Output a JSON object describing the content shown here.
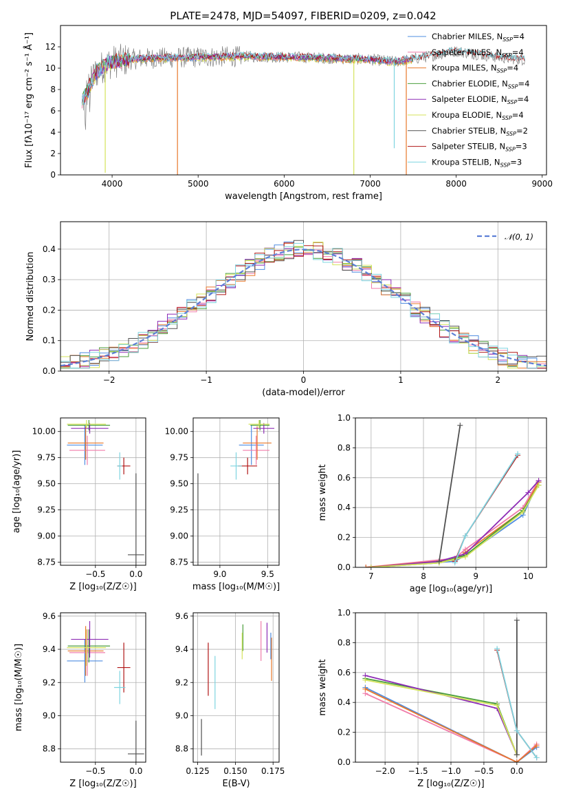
{
  "colors": {
    "chabrier_miles": "#4e8ce0",
    "salpeter_miles": "#f07ba9",
    "kroupa_miles": "#e8782a",
    "chabrier_elodie": "#4a9e3a",
    "salpeter_elodie": "#8d2bb5",
    "kroupa_elodie": "#d4e35a",
    "chabrier_stelib": "#505050",
    "salpeter_stelib": "#b01414",
    "kroupa_stelib": "#7dd4e0",
    "norm": "#5d7fd6",
    "spectrum_grey": "#7f7f7f"
  },
  "chart_data": [
    {
      "id": "spectrum",
      "type": "line",
      "title": "PLATE=2478, MJD=54097, FIBERID=0209, z=0.042",
      "xlabel": "wavelength [Angstrom, rest frame]",
      "ylabel": "Flux [fλ10⁻¹⁷ erg cm⁻² s⁻¹ Å⁻¹]",
      "xlim": [
        3400,
        9050
      ],
      "ylim": [
        0,
        14
      ],
      "xticks": [
        "4000",
        "5000",
        "6000",
        "7000",
        "8000",
        "9000"
      ],
      "yticks": [
        "0",
        "2",
        "4",
        "6",
        "8",
        "10",
        "12"
      ],
      "legend_position": "top-right",
      "legend": [
        "Chabrier MILES, N_SSP=4",
        "Salpeter MILES, N_SSP=4",
        "Kroupa MILES, N_SSP=4",
        "Chabrier ELODIE, N_SSP=4",
        "Salpeter ELODIE, N_SSP=4",
        "Kroupa ELODIE, N_SSP=4",
        "Chabrier STELIB, N_SSP=2",
        "Salpeter STELIB, N_SSP=3",
        "Kroupa STELIB, N_SSP=3"
      ],
      "legend_display": [
        [
          "Chabrier MILES, N",
          "SSP",
          "=4"
        ],
        [
          "Salpeter MILES, N",
          "SSP",
          "=4"
        ],
        [
          "Kroupa MILES, N",
          "SSP",
          "=4"
        ],
        [
          "Chabrier ELODIE, N",
          "SSP",
          "=4"
        ],
        [
          "Salpeter ELODIE, N",
          "SSP",
          "=4"
        ],
        [
          "Kroupa ELODIE, N",
          "SSP",
          "=4"
        ],
        [
          "Chabrier STELIB, N",
          "SSP",
          "=2"
        ],
        [
          "Salpeter STELIB, N",
          "SSP",
          "=3"
        ],
        [
          "Kroupa STELIB, N",
          "SSP",
          "=3"
        ]
      ],
      "continuum": [
        [
          3650,
          6.8
        ],
        [
          3700,
          7.6
        ],
        [
          3800,
          9.5
        ],
        [
          3900,
          10.2
        ],
        [
          4000,
          10.6
        ],
        [
          4300,
          10.9
        ],
        [
          4800,
          11.0
        ],
        [
          5500,
          11.1
        ],
        [
          6300,
          11.0
        ],
        [
          7000,
          10.8
        ],
        [
          7300,
          10.6
        ],
        [
          7600,
          11.0
        ],
        [
          8000,
          11.6
        ],
        [
          8500,
          11.0
        ],
        [
          8800,
          10.8
        ]
      ],
      "model_end": 7500,
      "dips": [
        {
          "x": 3920,
          "y": 0.2,
          "color": "kroupa_elodie"
        },
        {
          "x": 4760,
          "y": 0.0,
          "color": "kroupa_miles"
        },
        {
          "x": 6810,
          "y": 0.0,
          "color": "kroupa_elodie"
        },
        {
          "x": 7280,
          "y": 2.5,
          "color": "kroupa_stelib"
        },
        {
          "x": 7420,
          "y": 0.0,
          "color": "kroupa_miles"
        }
      ]
    },
    {
      "id": "residuals",
      "type": "line",
      "xlabel": "(data-model)/error",
      "ylabel": "Normed distribution",
      "xlim": [
        -2.5,
        2.5
      ],
      "ylim": [
        0,
        0.49
      ],
      "xticks": [
        "−2",
        "−1",
        "0",
        "1",
        "2"
      ],
      "yticks": [
        "0.0",
        "0.1",
        "0.2",
        "0.3",
        "0.4"
      ],
      "legend_position": "top-right",
      "legend": [
        "𝒩(0, 1)"
      ],
      "normal_mean": 0,
      "normal_sd": 1,
      "bin_width": 0.1
    },
    {
      "id": "age_vs_Z",
      "type": "scatter",
      "xlabel": "Z [log₁₀(Z/Z☉)]",
      "ylabel": "age  [log₁₀(age/yr)]",
      "xlim": [
        -0.93,
        0.12
      ],
      "ylim": [
        8.72,
        10.13
      ],
      "xticks": [
        "−0.5",
        "0.0"
      ],
      "yticks": [
        "8.75",
        "9.00",
        "9.25",
        "9.50",
        "9.75",
        "10.00"
      ],
      "points": [
        {
          "model": "chabrier_miles",
          "x": -0.63,
          "y": 9.87,
          "xerr": 0.22,
          "yerr": 0.19
        },
        {
          "model": "salpeter_miles",
          "x": -0.6,
          "y": 9.82,
          "xerr": 0.22,
          "yerr": 0.14
        },
        {
          "model": "kroupa_miles",
          "x": -0.62,
          "y": 9.89,
          "xerr": 0.22,
          "yerr": 0.16
        },
        {
          "model": "chabrier_elodie",
          "x": -0.58,
          "y": 10.06,
          "xerr": 0.26,
          "yerr": 0.05
        },
        {
          "model": "salpeter_elodie",
          "x": -0.57,
          "y": 10.03,
          "xerr": 0.23,
          "yerr": 0.05
        },
        {
          "model": "kroupa_elodie",
          "x": -0.61,
          "y": 10.07,
          "xerr": 0.24,
          "yerr": 0.04
        },
        {
          "model": "chabrier_stelib",
          "x": 0.0,
          "y": 8.82,
          "xerr": 0.1,
          "yerr": 0.78
        },
        {
          "model": "salpeter_stelib",
          "x": -0.15,
          "y": 9.67,
          "xerr": 0.08,
          "yerr": 0.08
        },
        {
          "model": "kroupa_stelib",
          "x": -0.2,
          "y": 9.67,
          "xerr": 0.03,
          "yerr": 0.13
        }
      ]
    },
    {
      "id": "age_vs_mass",
      "type": "scatter",
      "xlabel": "mass [log₁₀(M/M☉)]",
      "ylabel": "",
      "xlim": [
        8.72,
        9.62
      ],
      "ylim": [
        8.72,
        10.13
      ],
      "xticks": [
        "9.0",
        "9.5"
      ],
      "yticks": [
        "8.75",
        "9.00",
        "9.25",
        "9.50",
        "9.75",
        "10.00"
      ],
      "points": [
        {
          "model": "chabrier_miles",
          "x": 9.33,
          "y": 9.87,
          "xerr": 0.13,
          "yerr": 0.19
        },
        {
          "model": "salpeter_miles",
          "x": 9.38,
          "y": 9.82,
          "xerr": 0.14,
          "yerr": 0.14
        },
        {
          "model": "kroupa_miles",
          "x": 9.39,
          "y": 9.89,
          "xerr": 0.15,
          "yerr": 0.16
        },
        {
          "model": "chabrier_elodie",
          "x": 9.42,
          "y": 10.06,
          "xerr": 0.1,
          "yerr": 0.05
        },
        {
          "model": "salpeter_elodie",
          "x": 9.46,
          "y": 10.03,
          "xerr": 0.11,
          "yerr": 0.05
        },
        {
          "model": "kroupa_elodie",
          "x": 9.41,
          "y": 10.07,
          "xerr": 0.11,
          "yerr": 0.04
        },
        {
          "model": "chabrier_stelib",
          "x": 8.77,
          "y": 8.82,
          "xerr": 0.0,
          "yerr": 0.78
        },
        {
          "model": "salpeter_stelib",
          "x": 9.29,
          "y": 9.67,
          "xerr": 0.1,
          "yerr": 0.08
        },
        {
          "model": "kroupa_stelib",
          "x": 9.17,
          "y": 9.67,
          "xerr": 0.06,
          "yerr": 0.13
        }
      ]
    },
    {
      "id": "mass_weight_vs_age",
      "type": "line",
      "xlabel": "age  [log₁₀(age/yr)]",
      "ylabel": "mass weight",
      "xlim": [
        6.7,
        10.35
      ],
      "ylim": [
        0,
        1
      ],
      "xticks": [
        "7",
        "8",
        "9",
        "10"
      ],
      "yticks": [
        "0.0",
        "0.2",
        "0.4",
        "0.6",
        "0.8",
        "1.0"
      ],
      "series": [
        {
          "model": "chabrier_miles",
          "x": [
            6.9,
            8.6,
            8.8,
            9.9,
            10.2
          ],
          "y": [
            0.0,
            0.04,
            0.08,
            0.35,
            0.57
          ]
        },
        {
          "model": "salpeter_miles",
          "x": [
            6.9,
            8.6,
            8.8,
            9.9,
            10.2
          ],
          "y": [
            0.0,
            0.06,
            0.12,
            0.4,
            0.58
          ]
        },
        {
          "model": "kroupa_miles",
          "x": [
            6.9,
            8.6,
            8.8,
            9.9,
            10.2
          ],
          "y": [
            0.0,
            0.05,
            0.1,
            0.38,
            0.57
          ]
        },
        {
          "model": "chabrier_elodie",
          "x": [
            7.0,
            8.3,
            8.8,
            9.9,
            10.2
          ],
          "y": [
            0.0,
            0.03,
            0.08,
            0.38,
            0.55
          ]
        },
        {
          "model": "salpeter_elodie",
          "x": [
            7.0,
            8.3,
            8.8,
            10.0,
            10.2
          ],
          "y": [
            0.0,
            0.04,
            0.09,
            0.5,
            0.58
          ]
        },
        {
          "model": "kroupa_elodie",
          "x": [
            7.0,
            8.3,
            8.8,
            9.9,
            10.2
          ],
          "y": [
            0.0,
            0.03,
            0.07,
            0.37,
            0.55
          ]
        },
        {
          "model": "chabrier_stelib",
          "x": [
            8.3,
            8.7
          ],
          "y": [
            0.04,
            0.95
          ]
        },
        {
          "model": "salpeter_stelib",
          "x": [
            8.6,
            8.8,
            9.8
          ],
          "y": [
            0.04,
            0.21,
            0.75
          ]
        },
        {
          "model": "kroupa_stelib",
          "x": [
            8.6,
            8.8,
            9.8
          ],
          "y": [
            0.03,
            0.21,
            0.76
          ]
        }
      ]
    },
    {
      "id": "mass_vs_Z",
      "type": "scatter",
      "xlabel": "Z [log₁₀(Z/Z☉)]",
      "ylabel": "mass [log₁₀(M/M☉)]",
      "xlim": [
        -0.93,
        0.12
      ],
      "ylim": [
        8.72,
        9.62
      ],
      "xticks": [
        "−0.5",
        "0.0"
      ],
      "yticks": [
        "8.8",
        "9.0",
        "9.2",
        "9.4",
        "9.6"
      ],
      "points": [
        {
          "model": "chabrier_miles",
          "x": -0.63,
          "y": 9.33,
          "xerr": 0.22,
          "yerr": 0.13
        },
        {
          "model": "salpeter_miles",
          "x": -0.6,
          "y": 9.38,
          "xerr": 0.22,
          "yerr": 0.14
        },
        {
          "model": "kroupa_miles",
          "x": -0.62,
          "y": 9.39,
          "xerr": 0.22,
          "yerr": 0.15
        },
        {
          "model": "chabrier_elodie",
          "x": -0.58,
          "y": 9.42,
          "xerr": 0.26,
          "yerr": 0.1
        },
        {
          "model": "salpeter_elodie",
          "x": -0.57,
          "y": 9.46,
          "xerr": 0.23,
          "yerr": 0.11
        },
        {
          "model": "kroupa_elodie",
          "x": -0.61,
          "y": 9.41,
          "xerr": 0.24,
          "yerr": 0.11
        },
        {
          "model": "chabrier_stelib",
          "x": 0.0,
          "y": 8.77,
          "xerr": 0.1,
          "yerr": 0.2
        },
        {
          "model": "salpeter_stelib",
          "x": -0.15,
          "y": 9.29,
          "xerr": 0.08,
          "yerr": 0.15
        },
        {
          "model": "kroupa_stelib",
          "x": -0.2,
          "y": 9.17,
          "xerr": 0.07,
          "yerr": 0.1
        }
      ]
    },
    {
      "id": "mass_vs_ebv",
      "type": "scatter",
      "xlabel": "E(B-V)",
      "ylabel": "",
      "xlim": [
        0.122,
        0.179
      ],
      "ylim": [
        8.72,
        9.62
      ],
      "xticks": [
        "0.125",
        "0.150",
        "0.175"
      ],
      "yticks": [
        "8.8",
        "9.0",
        "9.2",
        "9.4",
        "9.6"
      ],
      "points": [
        {
          "model": "chabrier_miles",
          "x": 0.1735,
          "y": 9.42,
          "xerr": 0,
          "yerr": 0.08
        },
        {
          "model": "salpeter_miles",
          "x": 0.167,
          "y": 9.45,
          "xerr": 0,
          "yerr": 0.12
        },
        {
          "model": "kroupa_miles",
          "x": 0.174,
          "y": 9.34,
          "xerr": 0,
          "yerr": 0.13
        },
        {
          "model": "chabrier_elodie",
          "x": 0.155,
          "y": 9.47,
          "xerr": 0,
          "yerr": 0.08
        },
        {
          "model": "salpeter_elodie",
          "x": 0.171,
          "y": 9.47,
          "xerr": 0,
          "yerr": 0.09
        },
        {
          "model": "kroupa_elodie",
          "x": 0.1545,
          "y": 9.42,
          "xerr": 0,
          "yerr": 0.08
        },
        {
          "model": "chabrier_stelib",
          "x": 0.1275,
          "y": 8.87,
          "xerr": 0,
          "yerr": 0.11
        },
        {
          "model": "salpeter_stelib",
          "x": 0.132,
          "y": 9.28,
          "xerr": 0,
          "yerr": 0.16
        },
        {
          "model": "kroupa_stelib",
          "x": 0.1365,
          "y": 9.2,
          "xerr": 0,
          "yerr": 0.16
        }
      ]
    },
    {
      "id": "mass_weight_vs_Z",
      "type": "line",
      "xlabel": "Z [log₁₀(Z/Z☉)]",
      "ylabel": "mass weight",
      "xlim": [
        -2.45,
        0.45
      ],
      "ylim": [
        0,
        1
      ],
      "xticks": [
        "−2.0",
        "−1.5",
        "−1.0",
        "−0.5",
        "0.0"
      ],
      "yticks": [
        "0.0",
        "0.2",
        "0.4",
        "0.6",
        "0.8",
        "1.0"
      ],
      "series": [
        {
          "model": "chabrier_miles",
          "x": [
            -2.3,
            0.0,
            0.3
          ],
          "y": [
            0.5,
            0.0,
            0.1
          ]
        },
        {
          "model": "salpeter_miles",
          "x": [
            -2.3,
            0.0,
            0.3
          ],
          "y": [
            0.46,
            0.0,
            0.12
          ]
        },
        {
          "model": "kroupa_miles",
          "x": [
            -2.3,
            0.0,
            0.3
          ],
          "y": [
            0.49,
            0.0,
            0.11
          ]
        },
        {
          "model": "chabrier_elodie",
          "x": [
            -2.3,
            -0.3,
            0.0
          ],
          "y": [
            0.56,
            0.39,
            0.05
          ]
        },
        {
          "model": "salpeter_elodie",
          "x": [
            -2.3,
            -0.3,
            0.0
          ],
          "y": [
            0.58,
            0.36,
            0.05
          ]
        },
        {
          "model": "kroupa_elodie",
          "x": [
            -2.3,
            -0.3,
            0.0
          ],
          "y": [
            0.55,
            0.38,
            0.05
          ]
        },
        {
          "model": "chabrier_stelib",
          "x": [
            0.0,
            0.0
          ],
          "y": [
            0.05,
            0.95
          ]
        },
        {
          "model": "salpeter_stelib",
          "x": [
            -0.3,
            0.0,
            0.3
          ],
          "y": [
            0.75,
            0.21,
            0.03
          ]
        },
        {
          "model": "kroupa_stelib",
          "x": [
            -0.3,
            0.0,
            0.3
          ],
          "y": [
            0.76,
            0.21,
            0.03
          ]
        }
      ]
    }
  ]
}
